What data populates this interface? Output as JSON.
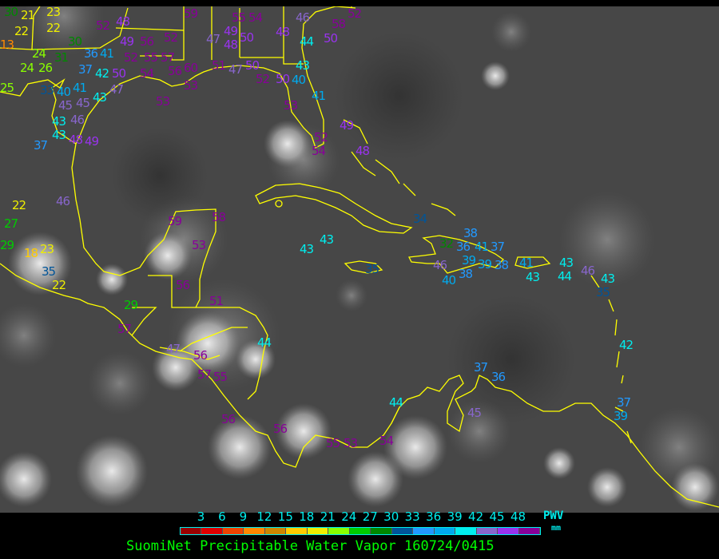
{
  "title": "SuomiNet Precipitable Water Vapor 160724/0415",
  "legend": {
    "unit_label": "PWV",
    "unit": "mm",
    "ticks": [
      "3",
      "6",
      "9",
      "12",
      "15",
      "18",
      "21",
      "24",
      "27",
      "30",
      "33",
      "36",
      "39",
      "42",
      "45",
      "48"
    ],
    "colors": [
      "#990000",
      "#dd0000",
      "#ee4400",
      "#ff8800",
      "#cc8800",
      "#ffcc00",
      "#eeee00",
      "#88ff00",
      "#00cc00",
      "#008800",
      "#005599",
      "#2299ff",
      "#00aaee",
      "#00eeee",
      "#8866cc",
      "#9933ee",
      "#880099"
    ]
  },
  "coastline_color": "#ffff00",
  "station_values": [
    30,
    21,
    23,
    22,
    22,
    13,
    30,
    24,
    31,
    36,
    41,
    37,
    42,
    24,
    26,
    25,
    33,
    40,
    41,
    50,
    45,
    45,
    43,
    47,
    43,
    43,
    46,
    48,
    49,
    37,
    49,
    56,
    52,
    52,
    55,
    57,
    54,
    53,
    59,
    48,
    52,
    56,
    60,
    53,
    55,
    54,
    49,
    47,
    48,
    50,
    48,
    46,
    44,
    52,
    58,
    50,
    51,
    47,
    50,
    43,
    52,
    50,
    40,
    41,
    53,
    49,
    52,
    54,
    48,
    46,
    22,
    27,
    29,
    18,
    23,
    35,
    22,
    59,
    58,
    53,
    56,
    29,
    51,
    57,
    47,
    56,
    57,
    55,
    44,
    56,
    56,
    34,
    32,
    36,
    38,
    41,
    39,
    37,
    39,
    46,
    38,
    40,
    35,
    38,
    41,
    43,
    43,
    44,
    46,
    43,
    35,
    43,
    43,
    37,
    36,
    44,
    45,
    37,
    39,
    55,
    53,
    54,
    42
  ]
}
